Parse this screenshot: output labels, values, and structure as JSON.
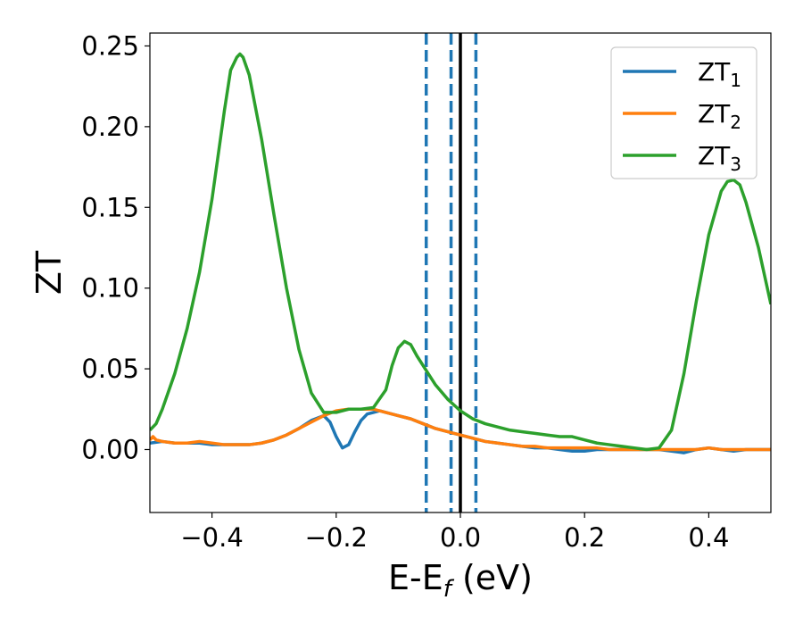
{
  "chart_data": {
    "type": "line",
    "xlabel": "E-E",
    "xlabel_sub": "f",
    "xlabel_unit": " (eV)",
    "ylabel": "ZT",
    "xlim": [
      -0.5,
      0.5
    ],
    "ylim": [
      -0.039,
      0.258
    ],
    "xticks": [
      -0.4,
      -0.2,
      0.0,
      0.2,
      0.4
    ],
    "xtick_labels": [
      "−0.4",
      "−0.2",
      "0.0",
      "0.2",
      "0.4"
    ],
    "yticks": [
      0.0,
      0.05,
      0.1,
      0.15,
      0.2,
      0.25
    ],
    "ytick_labels": [
      "0.00",
      "0.05",
      "0.10",
      "0.15",
      "0.20",
      "0.25"
    ],
    "legend_position": "top-right",
    "vlines": [
      {
        "x": -0.055,
        "style": "dashed",
        "color": "#1f77b4"
      },
      {
        "x": -0.015,
        "style": "dashed",
        "color": "#1f77b4"
      },
      {
        "x": 0.025,
        "style": "dashed",
        "color": "#1f77b4"
      },
      {
        "x": 0.0,
        "style": "solid",
        "color": "#000000"
      }
    ],
    "series": [
      {
        "name": "ZT",
        "sub": "1",
        "color": "#1f77b4",
        "points": [
          [
            -0.5,
            0.004
          ],
          [
            -0.48,
            0.005
          ],
          [
            -0.46,
            0.004
          ],
          [
            -0.44,
            0.004
          ],
          [
            -0.42,
            0.004
          ],
          [
            -0.4,
            0.003
          ],
          [
            -0.38,
            0.003
          ],
          [
            -0.36,
            0.003
          ],
          [
            -0.34,
            0.003
          ],
          [
            -0.32,
            0.004
          ],
          [
            -0.3,
            0.006
          ],
          [
            -0.28,
            0.009
          ],
          [
            -0.26,
            0.013
          ],
          [
            -0.24,
            0.018
          ],
          [
            -0.22,
            0.021
          ],
          [
            -0.21,
            0.017
          ],
          [
            -0.2,
            0.008
          ],
          [
            -0.19,
            0.001
          ],
          [
            -0.18,
            0.003
          ],
          [
            -0.17,
            0.011
          ],
          [
            -0.16,
            0.018
          ],
          [
            -0.15,
            0.022
          ],
          [
            -0.14,
            0.023
          ],
          [
            -0.13,
            0.024
          ],
          [
            -0.12,
            0.023
          ],
          [
            -0.1,
            0.021
          ],
          [
            -0.08,
            0.019
          ],
          [
            -0.06,
            0.016
          ],
          [
            -0.04,
            0.013
          ],
          [
            -0.02,
            0.011
          ],
          [
            0.0,
            0.009
          ],
          [
            0.02,
            0.007
          ],
          [
            0.04,
            0.005
          ],
          [
            0.06,
            0.004
          ],
          [
            0.08,
            0.003
          ],
          [
            0.1,
            0.002
          ],
          [
            0.12,
            0.001
          ],
          [
            0.14,
            0.001
          ],
          [
            0.16,
            0.0
          ],
          [
            0.18,
            -0.001
          ],
          [
            0.2,
            -0.001
          ],
          [
            0.22,
            0.0
          ],
          [
            0.24,
            0.0
          ],
          [
            0.26,
            0.0
          ],
          [
            0.28,
            0.0
          ],
          [
            0.3,
            0.0
          ],
          [
            0.32,
            0.0
          ],
          [
            0.34,
            -0.001
          ],
          [
            0.36,
            -0.002
          ],
          [
            0.38,
            0.0
          ],
          [
            0.4,
            0.001
          ],
          [
            0.42,
            0.0
          ],
          [
            0.44,
            -0.001
          ],
          [
            0.46,
            0.0
          ],
          [
            0.48,
            0.0
          ],
          [
            0.5,
            0.0
          ]
        ]
      },
      {
        "name": "ZT",
        "sub": "2",
        "color": "#ff7f0e",
        "points": [
          [
            -0.5,
            0.006
          ],
          [
            -0.495,
            0.008
          ],
          [
            -0.49,
            0.006
          ],
          [
            -0.48,
            0.005
          ],
          [
            -0.46,
            0.004
          ],
          [
            -0.44,
            0.004
          ],
          [
            -0.42,
            0.005
          ],
          [
            -0.4,
            0.004
          ],
          [
            -0.38,
            0.003
          ],
          [
            -0.36,
            0.003
          ],
          [
            -0.34,
            0.003
          ],
          [
            -0.32,
            0.004
          ],
          [
            -0.3,
            0.006
          ],
          [
            -0.28,
            0.009
          ],
          [
            -0.26,
            0.013
          ],
          [
            -0.24,
            0.017
          ],
          [
            -0.22,
            0.021
          ],
          [
            -0.2,
            0.024
          ],
          [
            -0.18,
            0.025
          ],
          [
            -0.16,
            0.025
          ],
          [
            -0.14,
            0.025
          ],
          [
            -0.12,
            0.023
          ],
          [
            -0.1,
            0.021
          ],
          [
            -0.08,
            0.019
          ],
          [
            -0.06,
            0.016
          ],
          [
            -0.04,
            0.013
          ],
          [
            -0.02,
            0.011
          ],
          [
            0.0,
            0.009
          ],
          [
            0.02,
            0.007
          ],
          [
            0.04,
            0.005
          ],
          [
            0.06,
            0.004
          ],
          [
            0.08,
            0.003
          ],
          [
            0.1,
            0.002
          ],
          [
            0.12,
            0.002
          ],
          [
            0.14,
            0.001
          ],
          [
            0.16,
            0.001
          ],
          [
            0.18,
            0.001
          ],
          [
            0.2,
            0.001
          ],
          [
            0.22,
            0.001
          ],
          [
            0.24,
            0.0
          ],
          [
            0.26,
            0.0
          ],
          [
            0.28,
            0.0
          ],
          [
            0.3,
            0.0
          ],
          [
            0.32,
            0.0
          ],
          [
            0.34,
            0.0
          ],
          [
            0.36,
            0.0
          ],
          [
            0.38,
            0.0
          ],
          [
            0.4,
            0.001
          ],
          [
            0.42,
            0.0
          ],
          [
            0.44,
            0.0
          ],
          [
            0.46,
            0.0
          ],
          [
            0.48,
            0.0
          ],
          [
            0.5,
            0.0
          ]
        ]
      },
      {
        "name": "ZT",
        "sub": "3",
        "color": "#2ca02c",
        "points": [
          [
            -0.5,
            0.012
          ],
          [
            -0.49,
            0.016
          ],
          [
            -0.48,
            0.025
          ],
          [
            -0.46,
            0.047
          ],
          [
            -0.44,
            0.075
          ],
          [
            -0.42,
            0.11
          ],
          [
            -0.4,
            0.155
          ],
          [
            -0.38,
            0.21
          ],
          [
            -0.37,
            0.235
          ],
          [
            -0.36,
            0.243
          ],
          [
            -0.355,
            0.245
          ],
          [
            -0.35,
            0.243
          ],
          [
            -0.34,
            0.232
          ],
          [
            -0.32,
            0.192
          ],
          [
            -0.3,
            0.145
          ],
          [
            -0.28,
            0.1
          ],
          [
            -0.26,
            0.062
          ],
          [
            -0.24,
            0.035
          ],
          [
            -0.22,
            0.023
          ],
          [
            -0.2,
            0.023
          ],
          [
            -0.18,
            0.025
          ],
          [
            -0.16,
            0.025
          ],
          [
            -0.14,
            0.026
          ],
          [
            -0.12,
            0.037
          ],
          [
            -0.11,
            0.052
          ],
          [
            -0.1,
            0.063
          ],
          [
            -0.09,
            0.067
          ],
          [
            -0.08,
            0.065
          ],
          [
            -0.07,
            0.058
          ],
          [
            -0.055,
            0.049
          ],
          [
            -0.04,
            0.04
          ],
          [
            -0.02,
            0.031
          ],
          [
            0.0,
            0.024
          ],
          [
            0.02,
            0.019
          ],
          [
            0.04,
            0.016
          ],
          [
            0.06,
            0.014
          ],
          [
            0.08,
            0.012
          ],
          [
            0.1,
            0.011
          ],
          [
            0.12,
            0.01
          ],
          [
            0.14,
            0.009
          ],
          [
            0.16,
            0.008
          ],
          [
            0.18,
            0.008
          ],
          [
            0.2,
            0.006
          ],
          [
            0.22,
            0.004
          ],
          [
            0.24,
            0.003
          ],
          [
            0.26,
            0.002
          ],
          [
            0.28,
            0.001
          ],
          [
            0.3,
            0.0
          ],
          [
            0.32,
            0.001
          ],
          [
            0.34,
            0.012
          ],
          [
            0.36,
            0.047
          ],
          [
            0.38,
            0.092
          ],
          [
            0.4,
            0.133
          ],
          [
            0.42,
            0.16
          ],
          [
            0.43,
            0.166
          ],
          [
            0.44,
            0.167
          ],
          [
            0.45,
            0.164
          ],
          [
            0.46,
            0.153
          ],
          [
            0.48,
            0.125
          ],
          [
            0.5,
            0.09
          ]
        ]
      }
    ]
  }
}
